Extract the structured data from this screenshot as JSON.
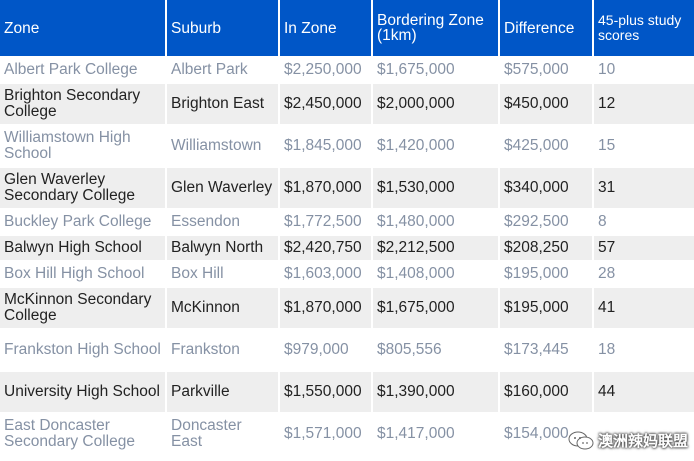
{
  "table": {
    "headers": [
      "Zone",
      "Suburb",
      "In Zone",
      "Bordering Zone (1km)",
      "Difference",
      "45-plus study scores"
    ],
    "rows": [
      [
        "Albert Park College",
        "Albert Park",
        "$2,250,000",
        "$1,675,000",
        "$575,000",
        "10"
      ],
      [
        "Brighton Secondary College",
        "Brighton East",
        "$2,450,000",
        "$2,000,000",
        "$450,000",
        "12"
      ],
      [
        "Williamstown High School",
        "Williamstown",
        "$1,845,000",
        "$1,420,000",
        "$425,000",
        "15"
      ],
      [
        "Glen Waverley Secondary College",
        "Glen Waverley",
        "$1,870,000",
        "$1,530,000",
        "$340,000",
        "31"
      ],
      [
        "Buckley Park College",
        "Essendon",
        "$1,772,500",
        "$1,480,000",
        "$292,500",
        "8"
      ],
      [
        "Balwyn High School",
        "Balwyn North",
        "$2,420,750",
        "$2,212,500",
        "$208,250",
        "57"
      ],
      [
        "Box Hill High School",
        "Box Hill",
        "$1,603,000",
        "$1,408,000",
        "$195,000",
        "28"
      ],
      [
        "McKinnon Secondary College",
        "McKinnon",
        "$1,870,000",
        "$1,675,000",
        "$195,000",
        "41"
      ],
      [
        "Frankston High School",
        "Frankston",
        "$979,000",
        "$805,556",
        "$173,445",
        "18"
      ],
      [
        "University High School",
        "Parkville",
        "$1,550,000",
        "$1,390,000",
        "$160,000",
        "44"
      ],
      [
        "East Doncaster Secondary College",
        "Doncaster East",
        "$1,571,000",
        "$1,417,000",
        "$154,000",
        ""
      ]
    ],
    "row_heights": [],
    "colors": {
      "header_bg": "#0056c7",
      "header_text": "#ffffff",
      "muted_text": "#8591a4",
      "dark_text": "#222222",
      "alt_row_bg": "#eeeeee"
    }
  },
  "watermark": {
    "text": "澳洲辣妈联盟",
    "icon": "wechat-icon"
  }
}
